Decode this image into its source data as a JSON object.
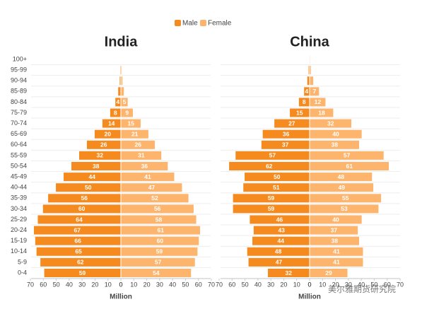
{
  "legend_title": null,
  "watermark": "美尔雅期货研究院",
  "chart_data": [
    {
      "type": "pyramid",
      "title": "India",
      "xlabel": "Million",
      "categories": [
        "0-4",
        "5-9",
        "10-14",
        "15-19",
        "20-24",
        "25-29",
        "30-34",
        "35-39",
        "40-44",
        "45-49",
        "50-54",
        "55-59",
        "60-64",
        "65-69",
        "70-74",
        "75-79",
        "80-84",
        "85-89",
        "90-94",
        "95-99",
        "100+"
      ],
      "series": [
        {
          "name": "Male",
          "color": "#f58a1f",
          "values": [
            59,
            62,
            65,
            66,
            67,
            64,
            60,
            56,
            50,
            44,
            38,
            32,
            26,
            20,
            14,
            8,
            4,
            1.8,
            0.6,
            0.2,
            0
          ]
        },
        {
          "name": "Female",
          "color": "#fdb46c",
          "values": [
            54,
            57,
            59,
            60,
            61,
            58,
            56,
            52,
            47,
            41,
            36,
            31,
            26,
            21,
            15,
            9,
            5,
            2,
            0.9,
            0.3,
            0
          ]
        }
      ],
      "xlim": [
        0,
        70
      ],
      "xticks": [
        0,
        10,
        20,
        30,
        40,
        50,
        60,
        70
      ]
    },
    {
      "type": "pyramid",
      "title": "China",
      "xlabel": "Million",
      "categories": [
        "0-4",
        "5-9",
        "10-14",
        "15-19",
        "20-24",
        "25-29",
        "30-34",
        "35-39",
        "40-44",
        "45-49",
        "50-54",
        "55-59",
        "60-64",
        "65-69",
        "70-74",
        "75-79",
        "80-84",
        "85-89",
        "90-94",
        "95-99",
        "100+"
      ],
      "series": [
        {
          "name": "Male",
          "color": "#f58a1f",
          "values": [
            32,
            47,
            48,
            44,
            43,
            46,
            59,
            59,
            51,
            50,
            62,
            57,
            37,
            36,
            27,
            15,
            8,
            4,
            1.5,
            0.5,
            0
          ]
        },
        {
          "name": "Female",
          "color": "#fdb46c",
          "values": [
            29,
            41,
            41,
            38,
            37,
            40,
            53,
            55,
            49,
            48,
            61,
            57,
            38,
            40,
            32,
            18,
            12,
            7,
            2.5,
            0.7,
            0.1
          ]
        }
      ],
      "xlim": [
        0,
        70
      ],
      "xticks": [
        0,
        10,
        20,
        30,
        40,
        50,
        60,
        70
      ]
    }
  ]
}
